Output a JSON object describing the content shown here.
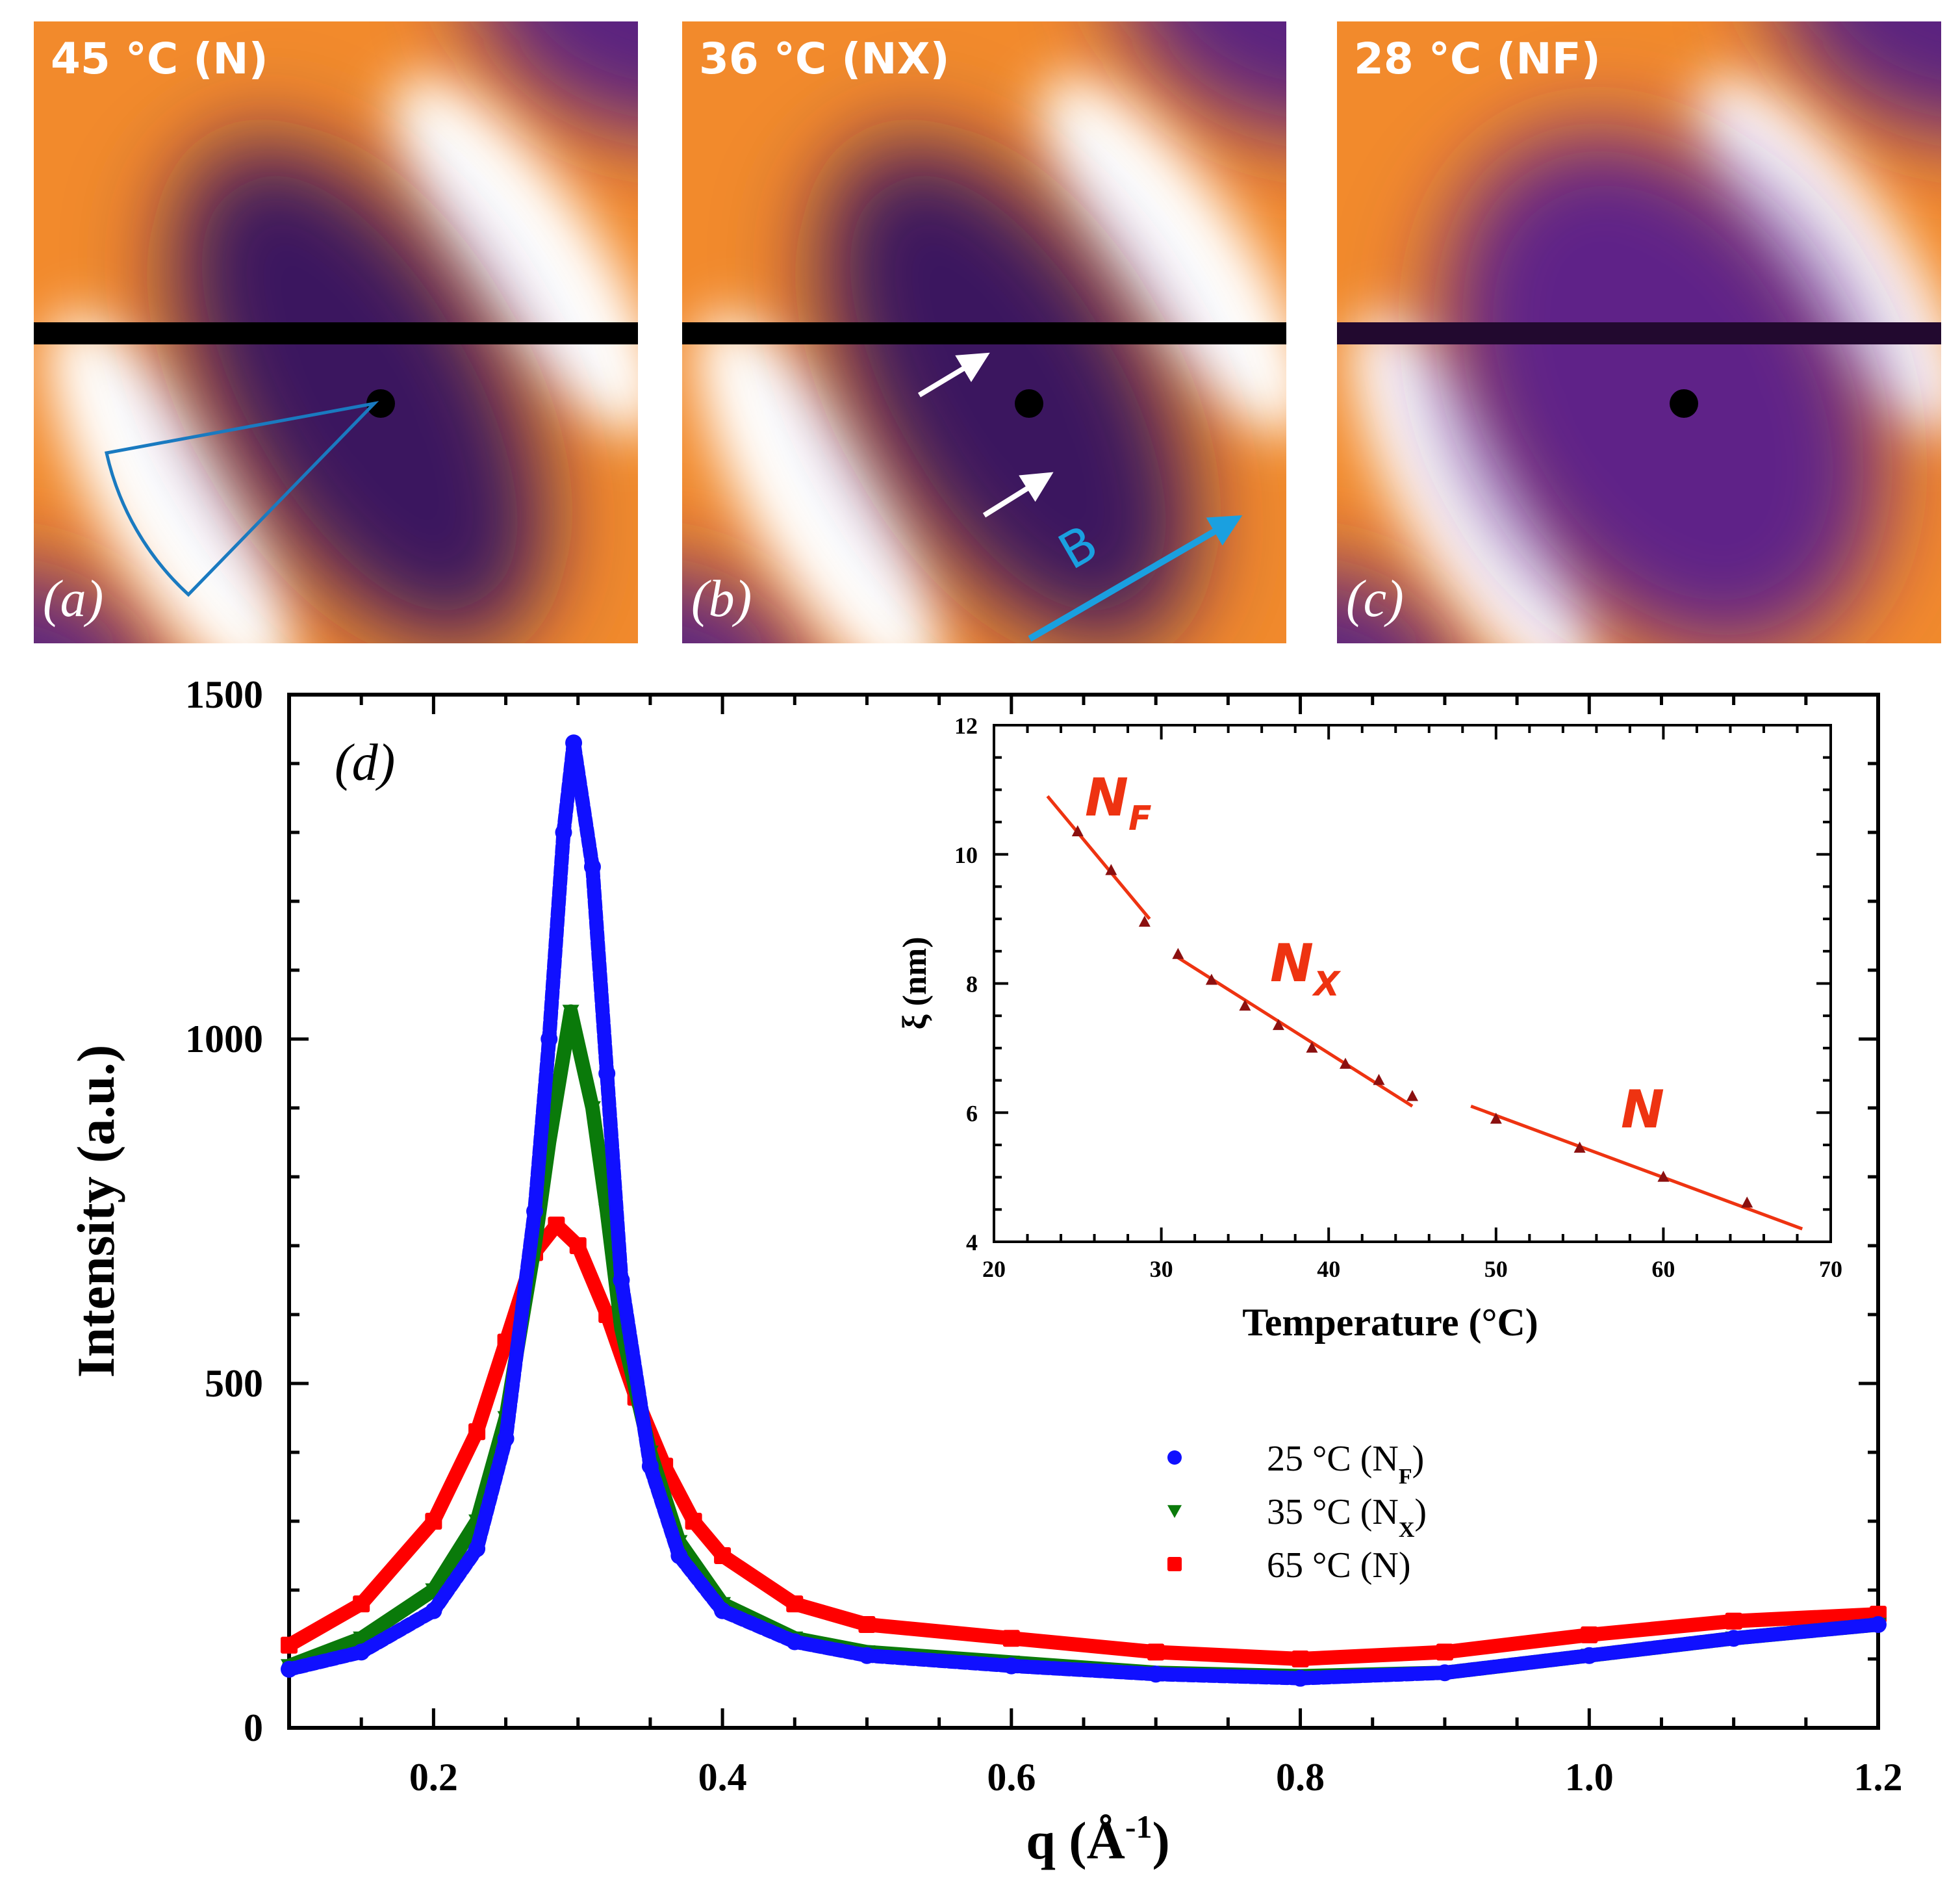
{
  "panels": [
    {
      "label": "(a)",
      "title": "45 °C (N)",
      "variant": "N"
    },
    {
      "label": "(b)",
      "title": "36 °C (NX)",
      "variant": "NX",
      "field_label": "B"
    },
    {
      "label": "(c)",
      "title": "28 °C (NF)",
      "variant": "NF"
    }
  ],
  "colors": {
    "orange": "#f28a2c",
    "purple": "#5a2280",
    "fit_line": "#ee3311",
    "inset_marker": "#8b1010",
    "field_arrow": "#1aa0e0",
    "sector": "#1a7ac0"
  },
  "chart_data": [
    {
      "type": "scatter",
      "panel_label": "(d)",
      "xlabel": "q (Å",
      "xlabel_sup": "-1",
      "xlabel_end": ")",
      "ylabel": "Intensity (a.u.)",
      "xlim": [
        0.1,
        1.2
      ],
      "ylim": [
        0,
        1500
      ],
      "xticks": [
        "0.2",
        "0.4",
        "0.6",
        "0.8",
        "1.0",
        "1.2"
      ],
      "yticks": [
        "0",
        "500",
        "1000",
        "1500"
      ],
      "legend_position": "center-right",
      "series": [
        {
          "name": "25 °C (N",
          "sub": "F",
          "name_end": ")",
          "color": "#1010ff",
          "marker": "circle",
          "x": [
            0.1,
            0.15,
            0.2,
            0.23,
            0.25,
            0.27,
            0.28,
            0.29,
            0.297,
            0.31,
            0.32,
            0.33,
            0.35,
            0.37,
            0.4,
            0.45,
            0.5,
            0.6,
            0.7,
            0.8,
            0.9,
            1.0,
            1.1,
            1.2
          ],
          "y": [
            85,
            110,
            170,
            260,
            420,
            750,
            1000,
            1300,
            1430,
            1250,
            950,
            650,
            380,
            250,
            170,
            125,
            105,
            90,
            78,
            72,
            80,
            105,
            130,
            150
          ]
        },
        {
          "name": "35 °C (N",
          "sub": "X",
          "name_end": ")",
          "color": "#0a7a0a",
          "marker": "triangle-down",
          "x": [
            0.1,
            0.15,
            0.2,
            0.23,
            0.25,
            0.27,
            0.28,
            0.295,
            0.31,
            0.32,
            0.33,
            0.35,
            0.37,
            0.4,
            0.45,
            0.5,
            0.6,
            0.7,
            0.8,
            0.9,
            1.0,
            1.1,
            1.2
          ],
          "y": [
            90,
            130,
            200,
            300,
            450,
            700,
            850,
            1040,
            900,
            750,
            580,
            400,
            270,
            180,
            130,
            110,
            95,
            80,
            75,
            80,
            105,
            130,
            150
          ]
        },
        {
          "name": "65 °C (N)",
          "sub": "",
          "name_end": "",
          "color": "#ff0000",
          "marker": "square",
          "x": [
            0.1,
            0.15,
            0.2,
            0.23,
            0.25,
            0.27,
            0.285,
            0.3,
            0.32,
            0.34,
            0.36,
            0.38,
            0.4,
            0.45,
            0.5,
            0.6,
            0.7,
            0.8,
            0.9,
            1.0,
            1.1,
            1.2
          ],
          "y": [
            120,
            180,
            300,
            430,
            560,
            690,
            730,
            700,
            600,
            480,
            380,
            300,
            250,
            180,
            150,
            130,
            110,
            100,
            110,
            135,
            155,
            165
          ]
        }
      ]
    },
    {
      "type": "scatter",
      "xlabel": "Temperature (°C)",
      "ylabel": "ξ (nm)",
      "xlim": [
        20,
        70
      ],
      "ylim": [
        4,
        12
      ],
      "xticks": [
        "20",
        "30",
        "40",
        "50",
        "60",
        "70"
      ],
      "yticks": [
        "4",
        "6",
        "8",
        "10",
        "12"
      ],
      "points": {
        "x": [
          25,
          27,
          29,
          31,
          33,
          35,
          37,
          39,
          41,
          43,
          45,
          50,
          55,
          60,
          65
        ],
        "y": [
          10.35,
          9.75,
          8.95,
          8.45,
          8.05,
          7.65,
          7.35,
          7.0,
          6.75,
          6.5,
          6.25,
          5.9,
          5.45,
          5.0,
          4.6
        ]
      },
      "fits": [
        {
          "label": "N",
          "sub": "F",
          "x": [
            23.2,
            29.3
          ],
          "y": [
            10.9,
            9.0
          ]
        },
        {
          "label": "N",
          "sub": "X",
          "x": [
            31.0,
            45.0
          ],
          "y": [
            8.4,
            6.1
          ]
        },
        {
          "label": "N",
          "sub": "",
          "x": [
            48.5,
            68.3
          ],
          "y": [
            6.1,
            4.2
          ]
        }
      ]
    }
  ]
}
